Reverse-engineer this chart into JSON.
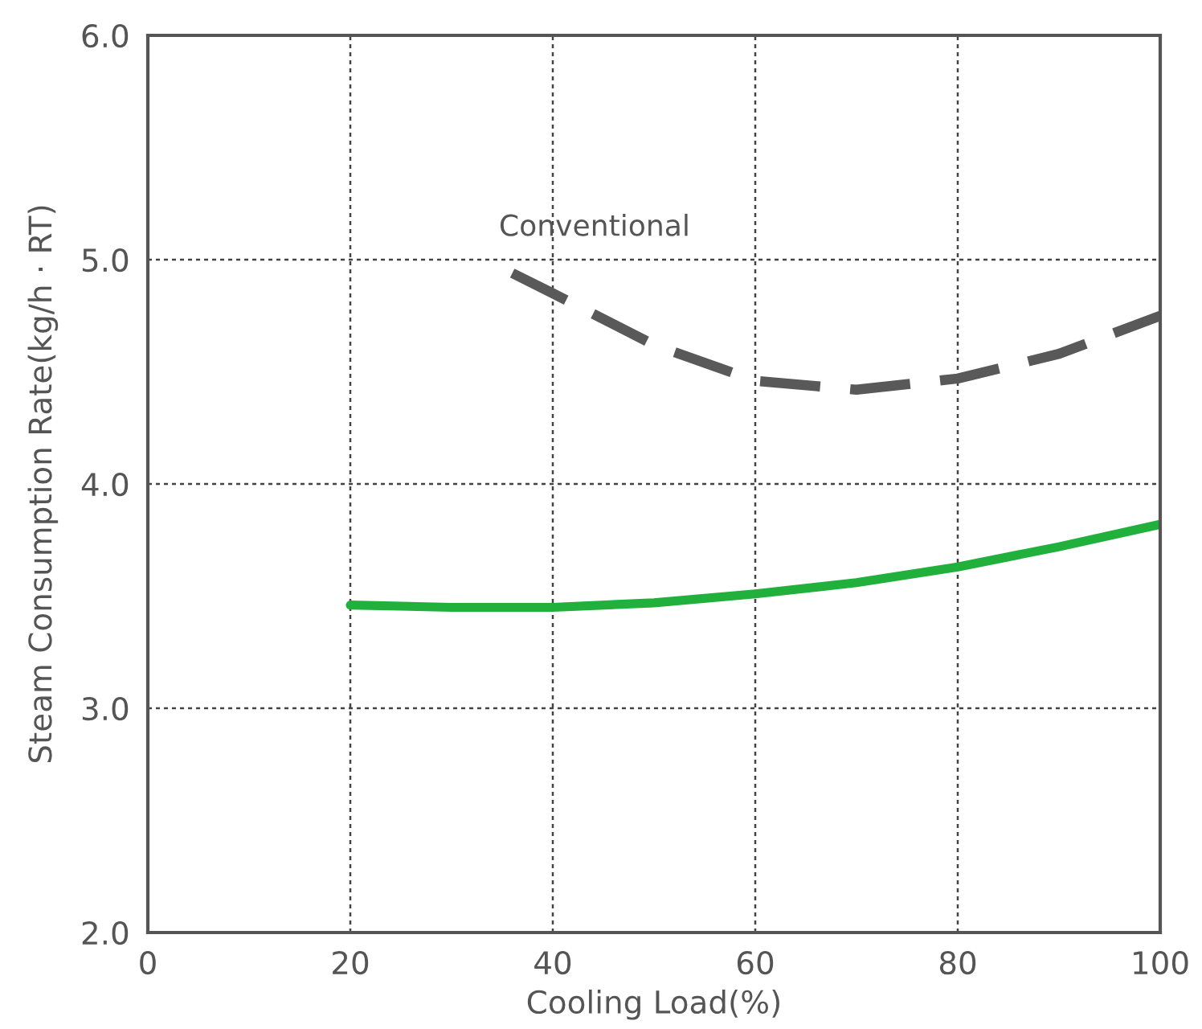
{
  "chart_data": {
    "type": "line",
    "xlabel": "Cooling Load(%)",
    "ylabel": "Steam Consumption Rate(kg/h · RT)",
    "xlim": [
      0,
      100
    ],
    "ylim": [
      2.0,
      6.0
    ],
    "xticks": [
      0,
      20,
      40,
      60,
      80,
      100
    ],
    "yticks": [
      {
        "value": 2.0,
        "label": "2.0"
      },
      {
        "value": 3.0,
        "label": "3.0"
      },
      {
        "value": 4.0,
        "label": "4.0"
      },
      {
        "value": 5.0,
        "label": "5.0"
      },
      {
        "value": 6.0,
        "label": "6.0"
      }
    ],
    "grid": true,
    "legend": false,
    "marker": "none",
    "series": [
      {
        "name": "Conventional",
        "color": "#595959",
        "line_style": "dashed",
        "x": [
          36,
          40,
          50,
          60,
          70,
          80,
          90,
          100
        ],
        "values": [
          4.94,
          4.85,
          4.62,
          4.46,
          4.42,
          4.47,
          4.58,
          4.75
        ]
      },
      {
        "color": "#22b03c",
        "line_style": "solid",
        "x": [
          20,
          30,
          40,
          50,
          60,
          70,
          80,
          90,
          100
        ],
        "values": [
          3.46,
          3.45,
          3.45,
          3.47,
          3.51,
          3.56,
          3.63,
          3.72,
          3.82
        ]
      }
    ]
  }
}
